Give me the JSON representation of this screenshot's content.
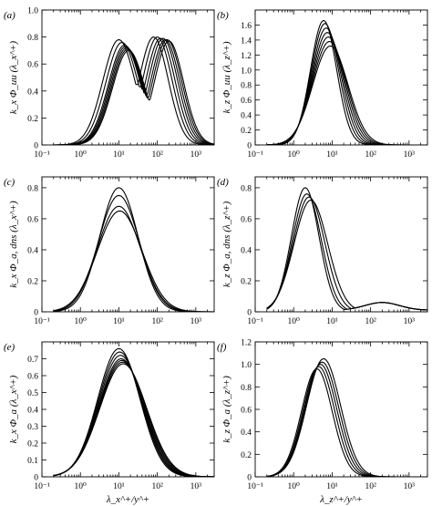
{
  "chart_data": [
    {
      "type": "line",
      "panel": "(a)",
      "ylabel": "k_x Φ_uu (λ_x^+)",
      "xscale": "log",
      "xlim": [
        0.1,
        3000
      ],
      "ylim": [
        0,
        1.0
      ],
      "xticks": [
        "10⁻¹",
        "10⁰",
        "10¹",
        "10²",
        "10³"
      ],
      "yticks": [
        "0",
        "0.2",
        "0.4",
        "0.6",
        "0.8",
        "1.0"
      ],
      "peaks": {
        "x1": [
          10,
          12,
          14,
          15,
          16,
          17,
          18
        ],
        "y1": [
          0.78,
          0.76,
          0.74,
          0.73,
          0.72,
          0.71,
          0.7
        ],
        "x2": [
          80,
          100,
          120,
          140,
          160,
          180,
          200
        ],
        "y2": [
          0.8,
          0.8,
          0.79,
          0.79,
          0.78,
          0.78,
          0.77
        ]
      }
    },
    {
      "type": "line",
      "panel": "(b)",
      "ylabel": "k_z Φ_uu (λ_z^+)",
      "xscale": "log",
      "xlim": [
        0.1,
        3000
      ],
      "ylim": [
        0,
        1.8
      ],
      "xticks": [
        "10⁻¹",
        "10⁰",
        "10¹",
        "10²",
        "10³"
      ],
      "yticks": [
        "0",
        "0.2",
        "0.4",
        "0.6",
        "0.8",
        "1.0",
        "1.2",
        "1.4",
        "1.6"
      ],
      "series_peak_x": [
        6,
        6.5,
        7,
        7.5,
        8,
        8.5,
        9
      ],
      "series_peak_y": [
        1.66,
        1.62,
        1.56,
        1.5,
        1.44,
        1.38,
        1.32
      ],
      "series_width": [
        0.34,
        0.36,
        0.38,
        0.4,
        0.42,
        0.44,
        0.46
      ]
    },
    {
      "type": "line",
      "panel": "(c)",
      "ylabel": "k_x Φ_a, dns (λ_x^+)",
      "xscale": "log",
      "xlim": [
        0.1,
        3000
      ],
      "ylim": [
        0,
        0.87
      ],
      "xticks": [
        "10⁻¹",
        "10⁰",
        "10¹",
        "10²",
        "10³"
      ],
      "yticks": [
        "0",
        "0.2",
        "0.4",
        "0.6",
        "0.8"
      ],
      "series_peak_x": [
        10,
        10,
        10,
        10.5
      ],
      "series_peak_y": [
        0.8,
        0.75,
        0.68,
        0.65
      ],
      "series_width": [
        0.5,
        0.53,
        0.56,
        0.58
      ]
    },
    {
      "type": "line",
      "panel": "(d)",
      "ylabel": "k_z Φ_a, dns (λ_z^+)",
      "xscale": "log",
      "xlim": [
        0.1,
        3000
      ],
      "ylim": [
        0,
        0.87
      ],
      "xticks": [
        "10⁻¹",
        "10⁰",
        "10¹",
        "10²",
        "10³"
      ],
      "yticks": [
        "0",
        "0.2",
        "0.4",
        "0.6",
        "0.8"
      ],
      "series_peak_x": [
        2.0,
        2.2,
        2.5,
        2.8
      ],
      "series_peak_y": [
        0.8,
        0.76,
        0.74,
        0.72
      ],
      "series_width": [
        0.36,
        0.38,
        0.41,
        0.44
      ],
      "bump": {
        "x": 200,
        "y": 0.05
      }
    },
    {
      "type": "line",
      "panel": "(e)",
      "ylabel": "k_x Φ_a (λ_x^+)",
      "xlabel": "λ_x^+/y^+",
      "xscale": "log",
      "xlim": [
        0.1,
        3000
      ],
      "ylim": [
        0,
        0.8
      ],
      "xticks": [
        "10⁻¹",
        "10⁰",
        "10¹",
        "10²",
        "10³"
      ],
      "yticks": [
        "0",
        "0.1",
        "0.2",
        "0.3",
        "0.4",
        "0.5",
        "0.6",
        "0.7"
      ],
      "series_peak_x": [
        10,
        10.5,
        11,
        11.5,
        12,
        12.5,
        13
      ],
      "series_peak_y": [
        0.76,
        0.74,
        0.72,
        0.7,
        0.69,
        0.68,
        0.67
      ],
      "series_width": [
        0.55,
        0.56,
        0.57,
        0.58,
        0.59,
        0.6,
        0.61
      ]
    },
    {
      "type": "line",
      "panel": "(f)",
      "ylabel": "k_z Φ_a (λ_z^+)",
      "xlabel": "λ_z^+/y^+",
      "xscale": "log",
      "xlim": [
        0.1,
        3000
      ],
      "ylim": [
        0,
        1.2
      ],
      "xticks": [
        "10⁻¹",
        "10⁰",
        "10¹",
        "10²",
        "10³"
      ],
      "yticks": [
        "0",
        "0.2",
        "0.4",
        "0.6",
        "0.8",
        "1.0",
        "1.2"
      ],
      "series_peak_x": [
        4.0,
        4.5,
        5.0,
        5.5,
        6.0
      ],
      "series_peak_y": [
        0.96,
        0.98,
        1.0,
        1.02,
        1.05
      ],
      "series_width": [
        0.4,
        0.41,
        0.42,
        0.43,
        0.44
      ]
    }
  ]
}
